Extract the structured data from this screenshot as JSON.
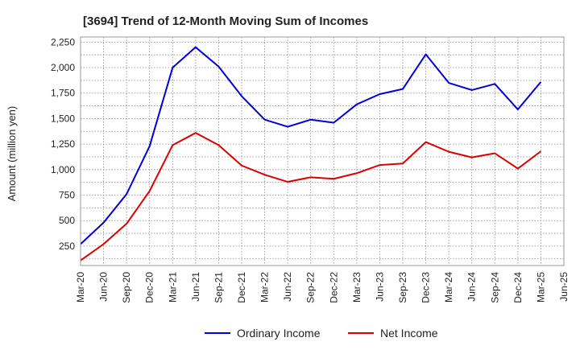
{
  "chart_data": {
    "type": "line",
    "title": "[3694]  Trend of 12-Month Moving Sum of Incomes",
    "xlabel": "",
    "ylabel": "Amount (million yen)",
    "ylim": [
      60,
      2300
    ],
    "yticks": [
      250,
      500,
      750,
      1000,
      1250,
      1500,
      1750,
      2000,
      2250
    ],
    "ytick_labels": [
      "250",
      "500",
      "750",
      "1,000",
      "1,250",
      "1,500",
      "1,750",
      "2,000",
      "2,250"
    ],
    "categories": [
      "Mar-20",
      "Jun-20",
      "Sep-20",
      "Dec-20",
      "Mar-21",
      "Jun-21",
      "Sep-21",
      "Dec-21",
      "Mar-22",
      "Jun-22",
      "Sep-22",
      "Dec-22",
      "Mar-23",
      "Jun-23",
      "Sep-23",
      "Dec-23",
      "Mar-24",
      "Jun-24",
      "Sep-24",
      "Dec-24",
      "Mar-25",
      "Jun-25"
    ],
    "grid": true,
    "legend_position": "bottom-center",
    "series": [
      {
        "name": "Ordinary Income",
        "color": "#0000dd",
        "values": [
          270,
          480,
          760,
          1230,
          2000,
          2200,
          2010,
          1720,
          1490,
          1420,
          1490,
          1460,
          1640,
          1740,
          1790,
          2130,
          1850,
          1780,
          1840,
          1590,
          1860,
          null
        ]
      },
      {
        "name": "Net Income",
        "color": "#dd0000",
        "values": [
          110,
          270,
          470,
          790,
          1240,
          1360,
          1240,
          1040,
          950,
          880,
          925,
          910,
          965,
          1045,
          1060,
          1270,
          1175,
          1120,
          1160,
          1010,
          1180,
          null
        ]
      }
    ]
  }
}
